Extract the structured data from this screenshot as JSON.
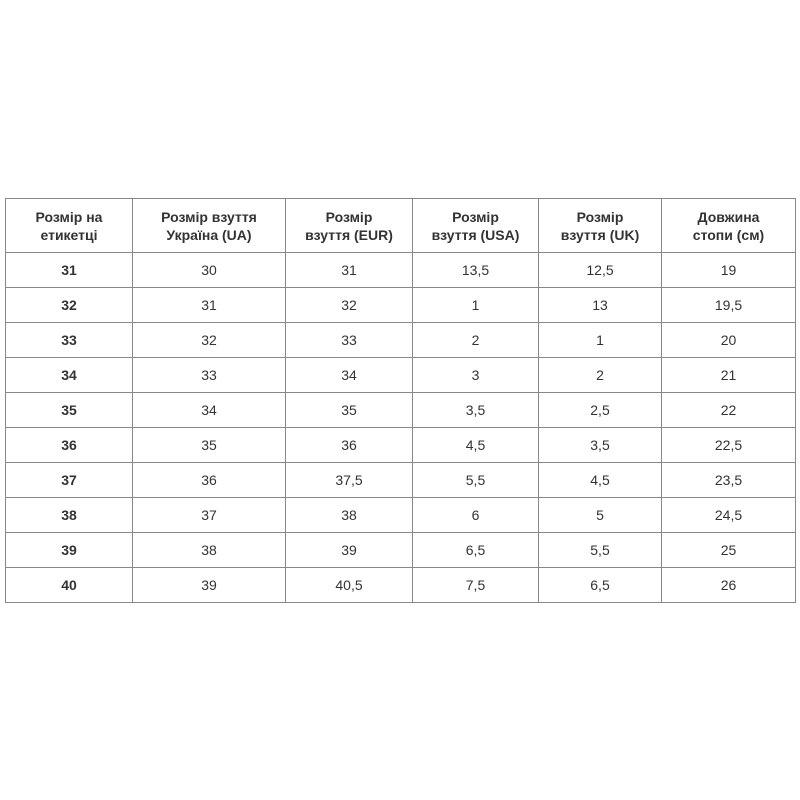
{
  "table": {
    "headers": [
      [
        "Розмір на",
        "етикетці"
      ],
      [
        "Розмір взуття",
        "Україна (UA)"
      ],
      [
        "Розмір",
        "взуття (EUR)"
      ],
      [
        "Розмір",
        "взуття (USA)"
      ],
      [
        "Розмір",
        "взуття (UK)"
      ],
      [
        "Довжина",
        "стопи (см)"
      ]
    ],
    "rows": [
      [
        "31",
        "30",
        "31",
        "13,5",
        "12,5",
        "19"
      ],
      [
        "32",
        "31",
        "32",
        "1",
        "13",
        "19,5"
      ],
      [
        "33",
        "32",
        "33",
        "2",
        "1",
        "20"
      ],
      [
        "34",
        "33",
        "34",
        "3",
        "2",
        "21"
      ],
      [
        "35",
        "34",
        "35",
        "3,5",
        "2,5",
        "22"
      ],
      [
        "36",
        "35",
        "36",
        "4,5",
        "3,5",
        "22,5"
      ],
      [
        "37",
        "36",
        "37,5",
        "5,5",
        "4,5",
        "23,5"
      ],
      [
        "38",
        "37",
        "38",
        "6",
        "5",
        "24,5"
      ],
      [
        "39",
        "38",
        "39",
        "6,5",
        "5,5",
        "25"
      ],
      [
        "40",
        "39",
        "40,5",
        "7,5",
        "6,5",
        "26"
      ]
    ]
  }
}
